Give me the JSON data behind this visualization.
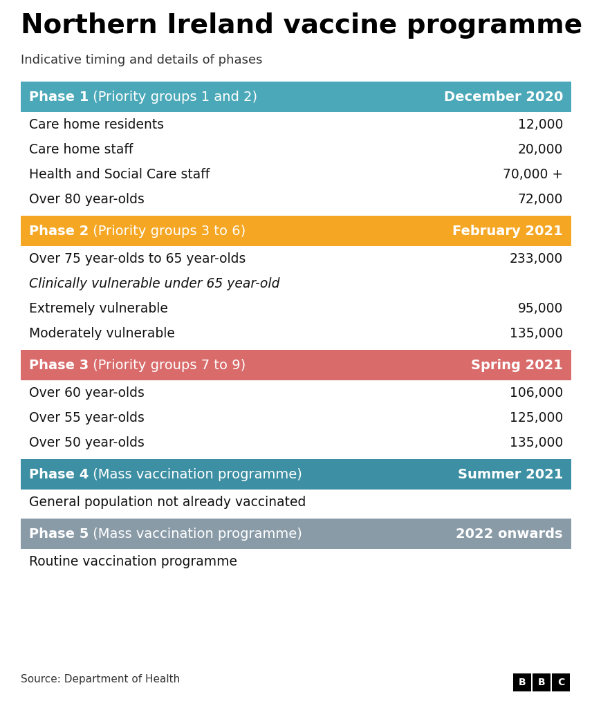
{
  "title": "Northern Ireland vaccine programme",
  "subtitle": "Indicative timing and details of phases",
  "background_color": "#ffffff",
  "phases": [
    {
      "header_bold": "Phase 1",
      "header_normal": " (Priority groups 1 and 2)",
      "timing": "December 2020",
      "color": "#4aa8b8",
      "rows": [
        {
          "label": "Care home residents",
          "value": "12,000",
          "italic": false
        },
        {
          "label": "Care home staff",
          "value": "20,000",
          "italic": false
        },
        {
          "label": "Health and Social Care staff",
          "value": "70,000 +",
          "italic": false
        },
        {
          "label": "Over 80 year-olds",
          "value": "72,000",
          "italic": false
        }
      ]
    },
    {
      "header_bold": "Phase 2",
      "header_normal": " (Priority groups 3 to 6)",
      "timing": "February 2021",
      "color": "#f5a623",
      "rows": [
        {
          "label": "Over 75 year-olds to 65 year-olds",
          "value": "233,000",
          "italic": false
        },
        {
          "label": "Clinically vulnerable under 65 year-old",
          "value": "",
          "italic": true
        },
        {
          "label": "Extremely vulnerable",
          "value": "95,000",
          "italic": false
        },
        {
          "label": "Moderately vulnerable",
          "value": "135,000",
          "italic": false
        }
      ]
    },
    {
      "header_bold": "Phase 3",
      "header_normal": " (Priority groups 7 to 9)",
      "timing": "Spring 2021",
      "color": "#d96b6b",
      "rows": [
        {
          "label": "Over 60 year-olds",
          "value": "106,000",
          "italic": false
        },
        {
          "label": "Over 55 year-olds",
          "value": "125,000",
          "italic": false
        },
        {
          "label": "Over 50 year-olds",
          "value": "135,000",
          "italic": false
        }
      ]
    },
    {
      "header_bold": "Phase 4",
      "header_normal": " (Mass vaccination programme)",
      "timing": "Summer 2021",
      "color": "#3d8fa3",
      "rows": [
        {
          "label": "General population not already vaccinated",
          "value": "",
          "italic": false
        }
      ]
    },
    {
      "header_bold": "Phase 5",
      "header_normal": " (Mass vaccination programme)",
      "timing": "2022 onwards",
      "color": "#8a9ba8",
      "rows": [
        {
          "label": "Routine vaccination programme",
          "value": "",
          "italic": false
        }
      ]
    }
  ],
  "source_text": "Source: Department of Health",
  "title_fontsize": 28,
  "subtitle_fontsize": 13,
  "header_fontsize": 14,
  "row_fontsize": 13.5
}
